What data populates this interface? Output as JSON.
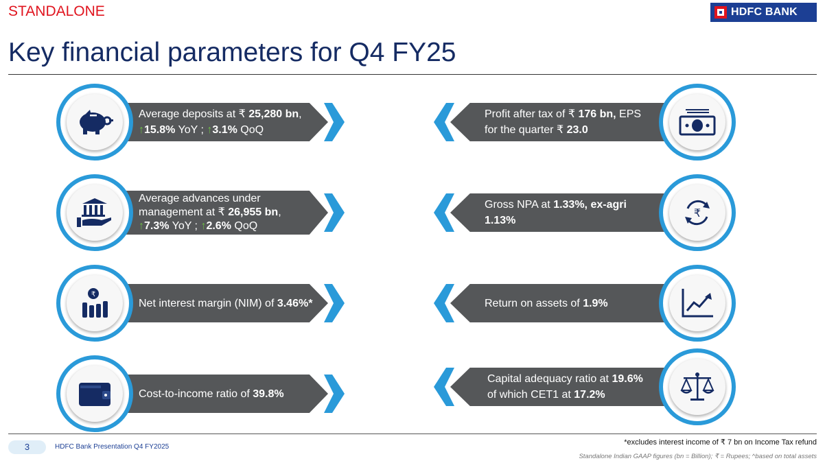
{
  "header": {
    "tag": "STANDALONE",
    "logo_text": "HDFC BANK",
    "title": "Key financial parameters for Q4 FY25"
  },
  "colors": {
    "accent_blue": "#2a9ad9",
    "navy": "#152b63",
    "bar_grey": "#555759",
    "arrow_green": "#6cbd45",
    "tag_red": "#e0141e"
  },
  "left_cards": [
    {
      "icon": "piggy-bank-icon",
      "l1_a": "Average deposits at ₹ ",
      "l1_b": "25,280 bn",
      "l1_c": ",",
      "l2_arrow1": "↑",
      "l2_a": "15.8%",
      "l2_b": " YoY ; ",
      "l2_arrow2": "↑",
      "l2_c": "3.1%",
      "l2_d": " QoQ"
    },
    {
      "icon": "bank-hand-icon",
      "l1": "Average advances under",
      "l2_a": "management at ₹ ",
      "l2_b": "26,955 bn",
      "l2_c": ",",
      "l3_arrow1": "↑",
      "l3_a": "7.3%",
      "l3_b": " YoY ; ",
      "l3_arrow2": "↑",
      "l3_c": "2.6%",
      "l3_d": " QoQ"
    },
    {
      "icon": "rupee-chart-icon",
      "l1_a": "Net interest margin (NIM) of ",
      "l1_b": "3.46%*"
    },
    {
      "icon": "wallet-icon",
      "l1_a": "Cost-to-income ratio of ",
      "l1_b": "39.8%"
    }
  ],
  "right_cards": [
    {
      "icon": "banknote-icon",
      "l1_a": "Profit after tax of ₹ ",
      "l1_b": "176 bn,",
      "l1_c": " EPS",
      "l2_a": "for the quarter ₹ ",
      "l2_b": "23.0"
    },
    {
      "icon": "rupee-cycle-icon",
      "l1_a": "Gross NPA at ",
      "l1_b": "1.33%, ex-agri",
      "l2_b": "1.13%"
    },
    {
      "icon": "trend-chart-icon",
      "l1_a": "Return on assets of ",
      "l1_b": "1.9%"
    },
    {
      "icon": "balance-scale-icon",
      "l1_a": "Capital adequacy ratio at ",
      "l1_b": "19.6%",
      "l2_a": "of which CET1 at ",
      "l2_b": "17.2%"
    }
  ],
  "footer": {
    "page_number": "3",
    "presentation": "HDFC Bank Presentation Q4 FY2025",
    "footnote": "*excludes interest income of ₹ 7 bn on Income Tax refund",
    "legend": "Standalone Indian GAAP figures (bn = Billion); ₹  = Rupees; ^based on total assets"
  }
}
